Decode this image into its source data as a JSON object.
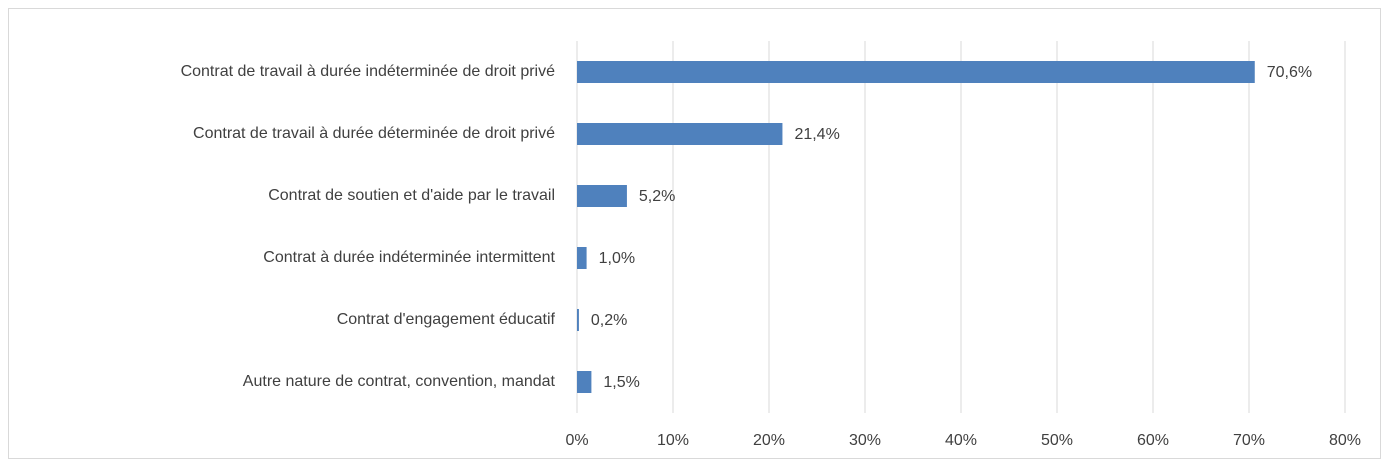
{
  "chart_data": {
    "type": "hbar",
    "categories": [
      "Contrat de travail à durée indéterminée de droit privé",
      "Contrat de travail à durée déterminée de droit privé",
      "Contrat de soutien et d'aide par le travail",
      "Contrat à durée indéterminée intermittent",
      "Contrat d'engagement éducatif",
      "Autre nature de contrat, convention, mandat"
    ],
    "values": [
      70.6,
      21.4,
      5.2,
      1.0,
      0.2,
      1.5
    ],
    "value_labels": [
      "70,6%",
      "21,4%",
      "5,2%",
      "1,0%",
      "0,2%",
      "1,5%"
    ],
    "color": "#4f81bd",
    "xlim": [
      0,
      80
    ],
    "xticks": [
      {
        "value": 0,
        "label": "0%"
      },
      {
        "value": 10,
        "label": "10%"
      },
      {
        "value": 20,
        "label": "20%"
      },
      {
        "value": 30,
        "label": "30%"
      },
      {
        "value": 40,
        "label": "40%"
      },
      {
        "value": 50,
        "label": "50%"
      },
      {
        "value": 60,
        "label": "60%"
      },
      {
        "value": 70,
        "label": "70%"
      },
      {
        "value": 80,
        "label": "80%"
      }
    ],
    "grid": true
  }
}
